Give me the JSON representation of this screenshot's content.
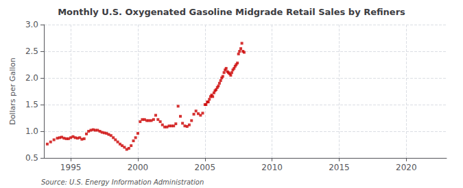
{
  "chart_data": {
    "type": "scatter",
    "title": "Monthly U.S. Oxygenated Gasoline Midgrade Retail Sales by Refiners",
    "ylabel": "Dollars per Gallon",
    "source": "Source: U.S. Energy Information Administration",
    "color": "#cc0000",
    "marker": "square",
    "grid": true,
    "xlim": [
      1993.0,
      2023.0
    ],
    "ylim": [
      0.5,
      3.0
    ],
    "xticks": [
      1995,
      2000,
      2005,
      2010,
      2015,
      2020
    ],
    "yticks": [
      0.5,
      {
        "value": 1.0,
        "label": "1.0"
      },
      1.5,
      {
        "value": 2.0,
        "label": "2.0"
      },
      2.5,
      {
        "value": 3.0,
        "label": "3.0"
      }
    ],
    "x": [
      1993.25,
      1993.5,
      1993.75,
      1994.0,
      1994.17,
      1994.33,
      1994.5,
      1994.67,
      1994.83,
      1995.0,
      1995.17,
      1995.33,
      1995.5,
      1995.67,
      1995.83,
      1996.0,
      1996.17,
      1996.33,
      1996.5,
      1996.67,
      1996.83,
      1997.0,
      1997.17,
      1997.33,
      1997.5,
      1997.67,
      1997.83,
      1998.0,
      1998.17,
      1998.33,
      1998.5,
      1998.67,
      1998.83,
      1999.0,
      1999.17,
      1999.33,
      1999.5,
      1999.67,
      1999.83,
      2000.0,
      2000.17,
      2000.33,
      2000.5,
      2000.67,
      2000.83,
      2001.0,
      2001.17,
      2001.33,
      2001.5,
      2001.67,
      2001.83,
      2002.0,
      2002.17,
      2002.33,
      2002.5,
      2002.67,
      2002.83,
      2003.0,
      2003.17,
      2003.33,
      2003.5,
      2003.67,
      2003.83,
      2004.0,
      2004.17,
      2004.33,
      2004.5,
      2004.67,
      2004.83,
      2005.0,
      2005.08,
      2005.17,
      2005.25,
      2005.33,
      2005.42,
      2005.5,
      2005.58,
      2005.67,
      2005.75,
      2005.83,
      2005.92,
      2006.0,
      2006.08,
      2006.17,
      2006.25,
      2006.33,
      2006.42,
      2006.5,
      2006.58,
      2006.67,
      2006.75,
      2006.83,
      2006.92,
      2007.0,
      2007.08,
      2007.17,
      2007.25,
      2007.33,
      2007.42,
      2007.5,
      2007.58,
      2007.67,
      2007.75,
      2007.83,
      2007.92
    ],
    "values": [
      0.76,
      0.8,
      0.84,
      0.87,
      0.88,
      0.89,
      0.87,
      0.86,
      0.86,
      0.88,
      0.9,
      0.88,
      0.87,
      0.88,
      0.85,
      0.86,
      0.95,
      1.0,
      1.02,
      1.03,
      1.02,
      1.02,
      1.0,
      0.98,
      0.97,
      0.96,
      0.94,
      0.92,
      0.88,
      0.84,
      0.8,
      0.76,
      0.73,
      0.7,
      0.66,
      0.68,
      0.73,
      0.82,
      0.88,
      0.96,
      1.18,
      1.22,
      1.22,
      1.2,
      1.2,
      1.2,
      1.22,
      1.3,
      1.22,
      1.18,
      1.12,
      1.08,
      1.08,
      1.1,
      1.1,
      1.1,
      1.14,
      1.47,
      1.28,
      1.15,
      1.1,
      1.09,
      1.12,
      1.2,
      1.32,
      1.38,
      1.33,
      1.3,
      1.34,
      1.5,
      1.5,
      1.55,
      1.55,
      1.6,
      1.65,
      1.68,
      1.65,
      1.72,
      1.76,
      1.78,
      1.82,
      1.85,
      1.9,
      1.95,
      2.0,
      2.03,
      2.1,
      2.15,
      2.18,
      2.12,
      2.1,
      2.08,
      2.05,
      2.1,
      2.15,
      2.18,
      2.22,
      2.25,
      2.28,
      2.45,
      2.5,
      2.55,
      2.65,
      2.5,
      2.48
    ]
  }
}
